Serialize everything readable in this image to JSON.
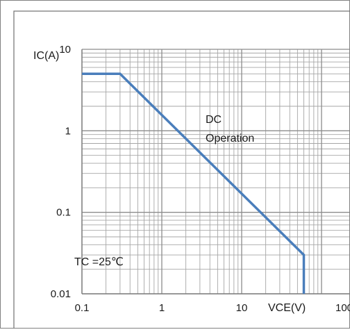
{
  "chart_data": {
    "type": "line",
    "x_scale": "log",
    "y_scale": "log",
    "xlim": [
      0.1,
      100
    ],
    "ylim": [
      0.01,
      10
    ],
    "grid": true,
    "x_ticks": [
      0.1,
      1,
      10,
      100
    ],
    "x_tick_labels": [
      "0.1",
      "1",
      "10",
      "100"
    ],
    "y_ticks": [
      0.01,
      0.1,
      1,
      10
    ],
    "y_tick_labels": [
      "0.01",
      "0.1",
      "1",
      "10"
    ],
    "xlabel": "VCE(V)",
    "ylabel": "IC(A)",
    "series": [
      {
        "x": [
          0.1,
          0.3,
          60,
          60
        ],
        "y": [
          5,
          5,
          0.03,
          0.01
        ]
      }
    ],
    "annotations": [
      {
        "text_lines": [
          "DC",
          "Operation"
        ]
      },
      {
        "text": "TC =25℃"
      }
    ],
    "colors": {
      "series": "#4a7ebb",
      "grid": "#a6a6a6",
      "frame": "#7f7f7f"
    }
  }
}
